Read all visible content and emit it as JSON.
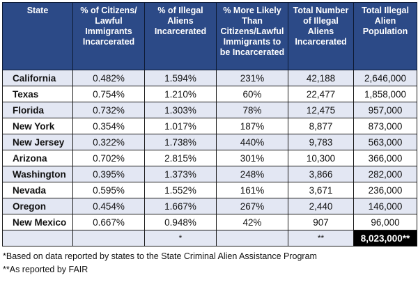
{
  "table": {
    "headers": [
      "State",
      "% of Citizens/ Lawful Immigrants Incarcerated",
      "% of Illegal Aliens Incarcerated",
      "% More Likely Than Citizens/Lawful Immigrants to be Incarcerated",
      "Total Number of Illegal Aliens Incarcerated",
      "Total Illegal Alien Population"
    ],
    "rows": [
      [
        "California",
        "0.482%",
        "1.594%",
        "231%",
        "42,188",
        "2,646,000"
      ],
      [
        "Texas",
        "0.754%",
        "1.210%",
        "60%",
        "22,477",
        "1,858,000"
      ],
      [
        "Florida",
        "0.732%",
        "1.303%",
        "78%",
        "12,475",
        "957,000"
      ],
      [
        "New York",
        "0.354%",
        "1.017%",
        "187%",
        "8,877",
        "873,000"
      ],
      [
        "New Jersey",
        "0.322%",
        "1.738%",
        "440%",
        "9,783",
        "563,000"
      ],
      [
        "Arizona",
        "0.702%",
        "2.815%",
        "301%",
        "10,300",
        "366,000"
      ],
      [
        "Washington",
        "0.395%",
        "1.373%",
        "248%",
        "3,866",
        "282,000"
      ],
      [
        "Nevada",
        "0.595%",
        "1.552%",
        "161%",
        "3,671",
        "236,000"
      ],
      [
        "Oregon",
        "0.454%",
        "1.667%",
        "267%",
        "2,440",
        "146,000"
      ],
      [
        "New Mexico",
        "0.667%",
        "0.948%",
        "42%",
        "907",
        "96,000"
      ]
    ],
    "total_row": [
      "",
      "",
      "*",
      "",
      "**",
      "8,023,000**"
    ]
  },
  "footnotes": [
    "*Based on data reported by states to the State Criminal Alien Assistance Program",
    "**As reported by FAIR"
  ]
}
